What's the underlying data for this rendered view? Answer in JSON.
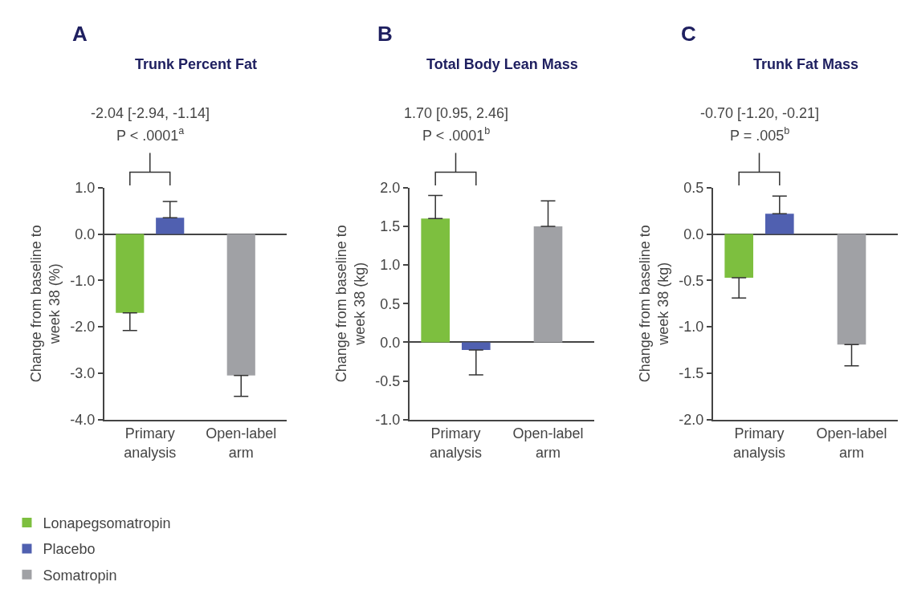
{
  "chart_data": [
    {
      "type": "bar",
      "title": "Trunk Percent Fat",
      "ylabel": "Change from baseline to\nweek 38 (%)",
      "categories": [
        "Primary analysis",
        "Open-label arm"
      ],
      "series": [
        {
          "name": "Lonapegsomatropin",
          "color": "#7dbf3f",
          "values": [
            -1.7,
            null
          ],
          "errors": [
            [
              -2.08,
              -1.7
            ],
            null
          ]
        },
        {
          "name": "Placebo",
          "color": "#5060b0",
          "values": [
            0.35,
            null
          ],
          "errors": [
            [
              0.35,
              0.7
            ],
            null
          ]
        },
        {
          "name": "Somatropin",
          "color": "#a0a1a5",
          "values": [
            null,
            -3.05
          ],
          "errors": [
            null,
            [
              -3.5,
              -3.05
            ]
          ]
        }
      ],
      "ylim": [
        -4.0,
        1.0
      ],
      "yticks": [
        {
          "value": -4,
          "label": "-4.0"
        },
        {
          "value": -3,
          "label": "-3.0"
        },
        {
          "value": -2,
          "label": "-2.0"
        },
        {
          "value": -1,
          "label": "-1.0"
        },
        {
          "value": 0,
          "label": "0.0"
        },
        {
          "value": 1,
          "label": "1.0"
        }
      ],
      "annotations": [
        "A",
        "-2.04 [-2.94, -1.14]",
        "P < .0001$^{a}$"
      ],
      "legend": "bottom left"
    },
    {
      "type": "bar",
      "title": "Total Body Lean Mass",
      "ylabel": "Change from baseline to\nweek 38 (kg)",
      "categories": [
        "Primary analysis",
        "Open-label arm"
      ],
      "series": [
        {
          "name": "Lonapegsomatropin",
          "color": "#7dbf3f",
          "values": [
            1.6,
            null
          ],
          "errors": [
            [
              1.6,
              1.9
            ],
            null
          ]
        },
        {
          "name": "Placebo",
          "color": "#5060b0",
          "values": [
            -0.1,
            null
          ],
          "errors": [
            [
              -0.42,
              -0.1
            ],
            null
          ]
        },
        {
          "name": "Somatropin",
          "color": "#a0a1a5",
          "values": [
            null,
            1.5
          ],
          "errors": [
            null,
            [
              1.5,
              1.83
            ]
          ]
        }
      ],
      "ylim": [
        -1.0,
        2.0
      ],
      "yticks": [
        {
          "value": -1,
          "label": "-1.0"
        },
        -0.5,
        {
          "value": 0,
          "label": "0.0"
        },
        0.5,
        {
          "value": 1,
          "label": "1.0"
        },
        1.5,
        {
          "value": 2,
          "label": "2.0"
        }
      ],
      "annotations": [
        "B",
        "1.70 [0.95, 2.46]",
        "P < .0001$^{b}$"
      ]
    },
    {
      "type": "bar",
      "title": "Trunk Fat Mass",
      "ylabel": "Change from baseline to\nweek 38 (kg)",
      "categories": [
        "Primary analysis",
        "Open-label arm"
      ],
      "series": [
        {
          "name": "Lonapegsomatropin",
          "color": "#7dbf3f",
          "values": [
            -0.47,
            null
          ],
          "errors": [
            [
              -0.69,
              -0.47
            ],
            null
          ]
        },
        {
          "name": "Placebo",
          "color": "#5060b0",
          "values": [
            0.22,
            null
          ],
          "errors": [
            [
              0.22,
              0.41
            ],
            null
          ]
        },
        {
          "name": "Somatropin",
          "color": "#a0a1a5",
          "values": [
            null,
            -1.19
          ],
          "errors": [
            null,
            [
              -1.42,
              -1.19
            ]
          ]
        }
      ],
      "ylim": [
        -2.0,
        0.5
      ],
      "yticks": [
        {
          "value": -2,
          "label": "-2.0"
        },
        -1.5,
        {
          "value": -1,
          "label": "-1.0"
        },
        -0.5,
        {
          "value": 0,
          "label": "0.0"
        },
        0.5
      ],
      "annotations": [
        "C",
        "-0.70 [-1.20, -0.21]",
        "P = .005$^{b}$"
      ]
    }
  ]
}
